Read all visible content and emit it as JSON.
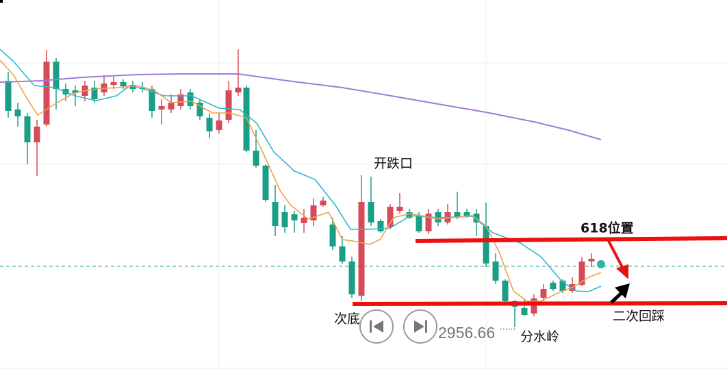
{
  "annotations": {
    "gap": "开跌口",
    "fib": "618位置",
    "second_bottom": "次底",
    "watershed": "分水岭",
    "retest": "二次回踩"
  },
  "price_label": "2956.66"
}
